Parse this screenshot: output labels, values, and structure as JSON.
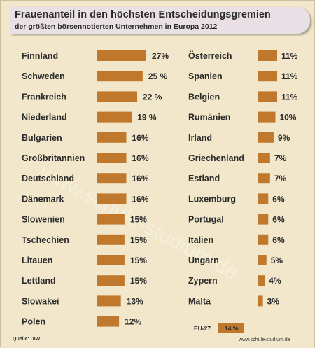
{
  "title": "Frauenanteil in den höchsten Entscheidungsgremien",
  "subtitle": "der größten börsennotierten Unternehmen in Europa 2012",
  "source": "Quelle: DIW",
  "credit": "www.schule-studium.de",
  "watermark": "www.schule-studium.de",
  "colors": {
    "bar": "#c0792c",
    "background": "#f2e7ca",
    "header": "#e9e0e6"
  },
  "chart_data": {
    "type": "bar",
    "orientation": "horizontal",
    "unit": "%",
    "columns": [
      {
        "categories": [
          "Finnland",
          "Schweden",
          "Frankreich",
          "Niederland",
          "Bulgarien",
          "Großbritannien",
          "Deutschland",
          "Dänemark",
          "Slowenien",
          "Tschechien",
          "Litauen",
          "Lettland",
          "Slowakei",
          "Polen"
        ],
        "values": [
          27,
          25,
          22,
          19,
          16,
          16,
          16,
          16,
          15,
          15,
          15,
          15,
          13,
          12
        ],
        "labels": [
          "27%",
          "25 %",
          "22 %",
          "19 %",
          "16%",
          "16%",
          "16%",
          "16%",
          "15%",
          "15%",
          "15%",
          "15%",
          "13%",
          "12%"
        ]
      },
      {
        "categories": [
          "Österreich",
          "Spanien",
          "Belgien",
          "Rumänien",
          "Irland",
          "Griechenland",
          "Estland",
          "Luxemburg",
          "Portugal",
          "Italien",
          "Ungarn",
          "Zypern",
          "Malta"
        ],
        "values": [
          11,
          11,
          11,
          10,
          9,
          7,
          7,
          6,
          6,
          6,
          5,
          4,
          3
        ],
        "labels": [
          "11%",
          "11%",
          "11%",
          "10%",
          "9%",
          "7%",
          "7%",
          "6%",
          "6%",
          "6%",
          "5%",
          "4%",
          "3%"
        ]
      }
    ],
    "summary": {
      "category": "EU-27",
      "value": 14,
      "label": "14 %"
    }
  }
}
